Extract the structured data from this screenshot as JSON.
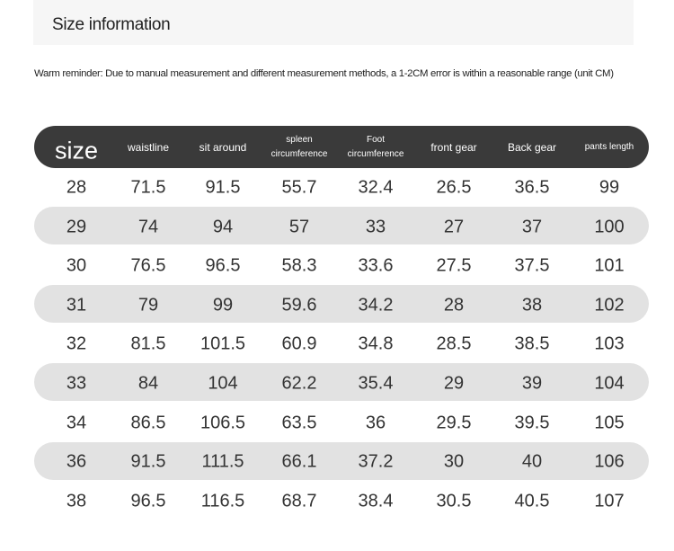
{
  "header": {
    "title": "Size information"
  },
  "reminder": "Warm reminder: Due to manual measurement and different measurement methods, a 1-2CM error is within a reasonable range (unit CM)",
  "table": {
    "columns": [
      "size",
      "waistline",
      "sit around",
      "spleen circumference",
      "Foot circumference",
      "front gear",
      "Back gear",
      "pants length"
    ],
    "rows": [
      [
        28,
        71.5,
        91.5,
        55.7,
        32.4,
        26.5,
        36.5,
        99
      ],
      [
        29,
        74,
        94,
        57,
        33,
        27,
        37,
        100
      ],
      [
        30,
        76.5,
        96.5,
        58.3,
        33.6,
        27.5,
        37.5,
        101
      ],
      [
        31,
        79,
        99,
        59.6,
        34.2,
        28,
        38,
        102
      ],
      [
        32,
        81.5,
        101.5,
        60.9,
        34.8,
        28.5,
        38.5,
        103
      ],
      [
        33,
        84,
        104,
        62.2,
        35.4,
        29,
        39,
        104
      ],
      [
        34,
        86.5,
        106.5,
        63.5,
        36,
        29.5,
        39.5,
        105
      ],
      [
        36,
        91.5,
        111.5,
        66.1,
        37.2,
        30,
        40,
        106
      ],
      [
        38,
        96.5,
        116.5,
        68.7,
        38.4,
        30.5,
        40.5,
        107
      ]
    ]
  }
}
